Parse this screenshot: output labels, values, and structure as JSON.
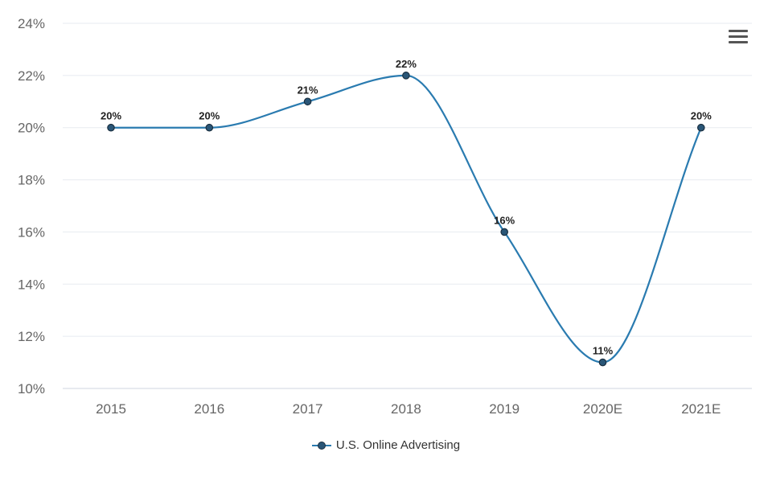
{
  "chart_data": {
    "type": "line",
    "categories": [
      "2015",
      "2016",
      "2017",
      "2018",
      "2019",
      "2020E",
      "2021E"
    ],
    "series": [
      {
        "name": "U.S. Online Advertising",
        "values": [
          20,
          20,
          21,
          22,
          16,
          11,
          20
        ],
        "data_labels": [
          "20%",
          "20%",
          "21%",
          "22%",
          "16%",
          "11%",
          "20%"
        ],
        "color": "#2a7bb0",
        "marker_color": "#2a5677"
      }
    ],
    "y_ticks": [
      10,
      12,
      14,
      16,
      18,
      20,
      22,
      24
    ],
    "y_tick_labels": [
      "10%",
      "12%",
      "14%",
      "16%",
      "18%",
      "20%",
      "22%",
      "24%"
    ],
    "ylim": [
      10,
      24
    ],
    "grid": true,
    "legend_position": "bottom",
    "title": "",
    "xlabel": "",
    "ylabel": ""
  },
  "toolbar": {
    "menu_icon": "hamburger-menu-icon"
  }
}
